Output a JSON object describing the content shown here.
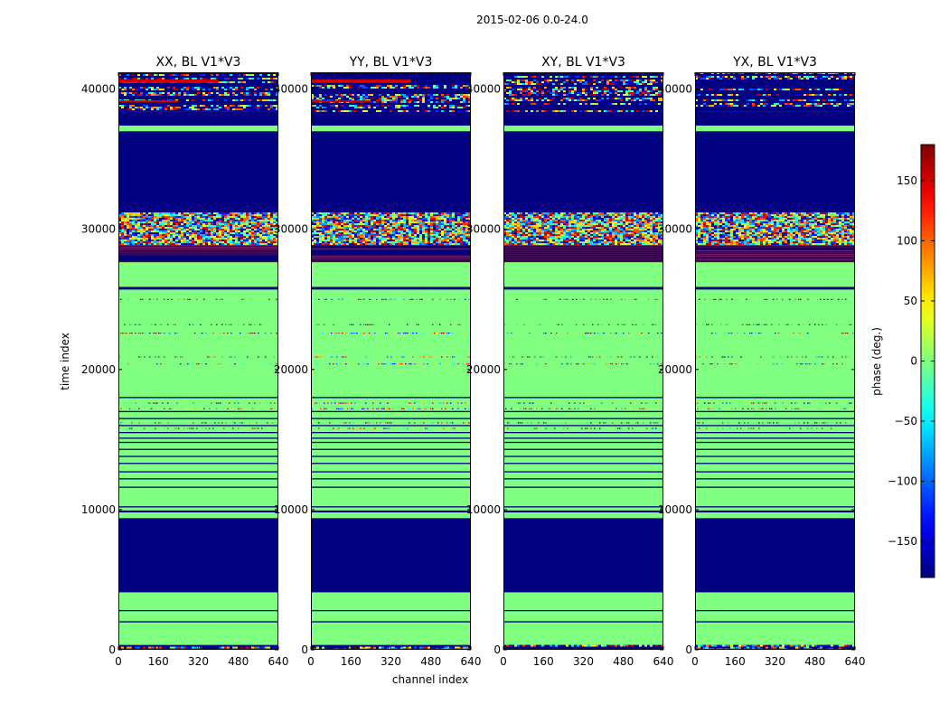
{
  "chart_data": {
    "type": "heatmap",
    "suptitle": "2015-02-06 0.0-24.0",
    "xlabel": "channel index",
    "ylabel": "time index",
    "xlim": [
      0,
      640
    ],
    "ylim": [
      0,
      41200
    ],
    "x_ticks": [
      0,
      160,
      320,
      480,
      640
    ],
    "x_tick_labels": [
      "0",
      "160",
      "320",
      "480",
      "640"
    ],
    "y_ticks": [
      0,
      10000,
      20000,
      30000,
      40000
    ],
    "y_tick_labels": [
      "0",
      "10000",
      "20000",
      "30000",
      "40000"
    ],
    "panels": [
      {
        "title": "XX, BL V1*V3",
        "pol": "XX",
        "partial_red_band_end": 400
      },
      {
        "title": "YY, BL V1*V3",
        "pol": "YY",
        "partial_red_band_end": 400
      },
      {
        "title": "XY, BL V1*V3",
        "pol": "XY",
        "partial_red_band_end": 0
      },
      {
        "title": "YX, BL V1*V3",
        "pol": "YX",
        "partial_red_band_end": 0
      }
    ],
    "time_segments": [
      {
        "t0": 0,
        "t1": 350,
        "kind": "noise_dark"
      },
      {
        "t0": 350,
        "t1": 4100,
        "kind": "flat_zero"
      },
      {
        "t0": 4100,
        "t1": 9400,
        "kind": "flag_min"
      },
      {
        "t0": 9400,
        "t1": 9800,
        "kind": "flat_zero"
      },
      {
        "t0": 9800,
        "t1": 9950,
        "kind": "flag_min"
      },
      {
        "t0": 9950,
        "t1": 25700,
        "kind": "flat_zero"
      },
      {
        "t0": 25700,
        "t1": 25900,
        "kind": "flag_min"
      },
      {
        "t0": 25900,
        "t1": 27700,
        "kind": "flat_zero"
      },
      {
        "t0": 27700,
        "t1": 28900,
        "kind": "stripes_red"
      },
      {
        "t0": 28900,
        "t1": 31200,
        "kind": "noise_full"
      },
      {
        "t0": 31200,
        "t1": 37000,
        "kind": "flag_min"
      },
      {
        "t0": 37000,
        "t1": 37400,
        "kind": "flat_zero"
      },
      {
        "t0": 37400,
        "t1": 38400,
        "kind": "flag_min"
      },
      {
        "t0": 38400,
        "t1": 41200,
        "kind": "noise_dark"
      }
    ],
    "flag_lines": [
      2000,
      2800,
      10200,
      11600,
      12200,
      12700,
      13300,
      13800,
      14300,
      14800,
      15100,
      15500,
      16000,
      16500,
      17000,
      18000
    ],
    "sparse_lines": [
      15800,
      16200,
      17200,
      17600,
      20400,
      20900,
      22600,
      23200,
      25000
    ],
    "colorbar": {
      "label": "phase (deg.)",
      "min": -180,
      "max": 180,
      "ticks": [
        -150,
        -100,
        -50,
        0,
        50,
        100,
        150
      ],
      "tick_labels": [
        "−150",
        "−100",
        "−50",
        "0",
        "50",
        "100",
        "150"
      ],
      "colormap": "jet"
    }
  }
}
